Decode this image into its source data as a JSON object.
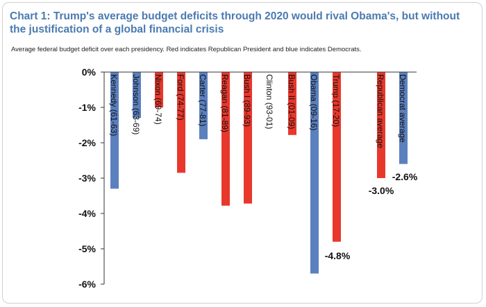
{
  "title": "Chart 1: Trump's average budget deficits through 2020 would rival Obama's, but without the justification of a global financial crisis",
  "subtitle": "Average federal budget deficit over each presidency. Red indicates Republican President and blue indicates Democrats.",
  "colors": {
    "republican": "#e8382c",
    "democrat": "#5b80be"
  },
  "chart_data": {
    "type": "bar",
    "title": "Chart 1: Trump's average budget deficits through 2020 would rival Obama's, but without the justification of a global financial crisis",
    "subtitle": "Average federal budget deficit over each presidency. Red indicates Republican President and blue indicates Democrats.",
    "xlabel": "",
    "ylabel": "",
    "ylim": [
      -6,
      0
    ],
    "yticks": [
      "0%",
      "-1%",
      "-2%",
      "-3%",
      "-4%",
      "-5%",
      "-6%"
    ],
    "grid": false,
    "categories": [
      "Kennedy (61-63)",
      "Johnson (63-69)",
      "Nixon (69-74)",
      "Ford (74-77)",
      "Carter (77-81)",
      "Reagan (81-89)",
      "Bush I (89-93)",
      "Clinton (93-01)",
      "Bush II (01-09)",
      "Obama (09-16)",
      "Trump (17-20)",
      "Republican average",
      "Democrat average"
    ],
    "values": [
      -3.3,
      -1.3,
      -1.0,
      -2.85,
      -1.9,
      -3.78,
      -3.72,
      0.0,
      -1.78,
      -5.7,
      -4.8,
      -3.0,
      -2.6
    ],
    "party": [
      "D",
      "D",
      "R",
      "R",
      "D",
      "R",
      "R",
      "D",
      "R",
      "D",
      "R",
      "R",
      "D"
    ],
    "data_labels": {
      "Trump (17-20)": "-4.8%",
      "Republican average": "-3.0%",
      "Democrat average": "-2.6%"
    }
  }
}
